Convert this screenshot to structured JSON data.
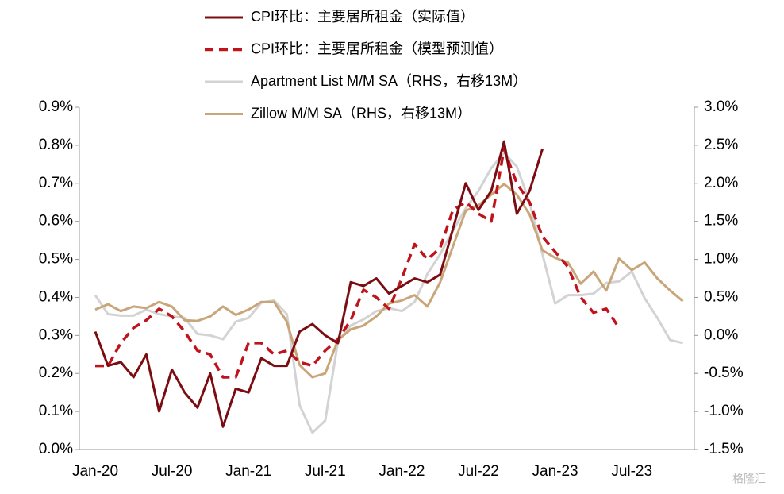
{
  "chart_data": {
    "type": "line",
    "legend": "top",
    "categories": [
      "Jan-20",
      null,
      null,
      null,
      null,
      null,
      "Jul-20",
      null,
      null,
      null,
      null,
      null,
      "Jan-21",
      null,
      null,
      null,
      null,
      null,
      "Jul-21",
      null,
      null,
      null,
      null,
      null,
      "Jan-22",
      null,
      null,
      null,
      null,
      null,
      "Jul-22",
      null,
      null,
      null,
      null,
      null,
      "Jan-23",
      null,
      null,
      null,
      null,
      null,
      "Jul-23",
      null,
      null,
      null,
      null
    ],
    "ylim": [
      0,
      0.9
    ],
    "yticks": [
      {
        "value": 0,
        "label": "0.0%"
      },
      {
        "value": 0.1,
        "label": "0.1%"
      },
      {
        "value": 0.2,
        "label": "0.2%"
      },
      {
        "value": 0.3,
        "label": "0.3%"
      },
      {
        "value": 0.4,
        "label": "0.4%"
      },
      {
        "value": 0.5,
        "label": "0.5%"
      },
      {
        "value": 0.6,
        "label": "0.6%"
      },
      {
        "value": 0.7,
        "label": "0.7%"
      },
      {
        "value": 0.8,
        "label": "0.8%"
      },
      {
        "value": 0.9,
        "label": "0.9%"
      }
    ],
    "y2lim": [
      -1.5,
      3.0
    ],
    "y2ticks": [
      {
        "value": -1.5,
        "label": "-1.5%"
      },
      {
        "value": -1.0,
        "label": "-1.0%"
      },
      {
        "value": -0.5,
        "label": "-0.5%"
      },
      {
        "value": 0,
        "label": "0.0%"
      },
      {
        "value": 0.5,
        "label": "0.5%"
      },
      {
        "value": 1.0,
        "label": "1.0%"
      },
      {
        "value": 1.5,
        "label": "1.5%"
      },
      {
        "value": 2.0,
        "label": "2.0%"
      },
      {
        "value": 2.5,
        "label": "2.5%"
      },
      {
        "value": 3.0,
        "label": "3.0%"
      }
    ],
    "series": [
      {
        "name": "CPI环比：主要居所租金（实际值）",
        "color": "#7b0d12",
        "dash": false,
        "values": [
          0.31,
          0.22,
          0.23,
          0.19,
          0.25,
          0.1,
          0.21,
          0.15,
          0.11,
          0.2,
          0.06,
          0.16,
          0.15,
          0.24,
          0.22,
          0.22,
          0.31,
          0.33,
          0.3,
          0.28,
          0.44,
          0.43,
          0.45,
          0.41,
          0.43,
          0.45,
          0.44,
          0.46,
          0.58,
          0.7,
          0.63,
          0.68,
          0.81,
          0.62,
          0.68,
          0.79,
          null,
          null,
          null,
          null,
          null,
          null,
          null,
          null,
          null,
          null,
          null
        ]
      },
      {
        "name": "CPI环比：主要居所租金（模型预测值）",
        "color": "#c0141c",
        "dash": true,
        "values": [
          0.22,
          0.22,
          0.28,
          0.32,
          0.34,
          0.37,
          0.35,
          0.31,
          0.26,
          0.25,
          0.19,
          0.19,
          0.28,
          0.28,
          0.25,
          0.26,
          0.23,
          0.22,
          0.26,
          0.29,
          0.34,
          0.42,
          0.4,
          0.37,
          0.45,
          0.54,
          0.5,
          0.53,
          0.63,
          0.65,
          0.62,
          0.6,
          0.79,
          0.7,
          0.65,
          0.56,
          0.52,
          0.48,
          0.4,
          0.36,
          0.37,
          0.32,
          null,
          null,
          null,
          null,
          null
        ]
      },
      {
        "name": "Apartment List  M/M SA（RHS，右移13M）",
        "color": "#d3d3d3",
        "dash": false,
        "axis": "y2",
        "values": [
          0.53,
          0.28,
          0.26,
          0.26,
          0.34,
          0.28,
          0.25,
          0.23,
          0.02,
          0.0,
          -0.05,
          0.18,
          0.23,
          0.43,
          0.46,
          0.28,
          -0.92,
          -1.28,
          -1.12,
          -0.08,
          0.13,
          0.21,
          0.32,
          0.36,
          0.32,
          0.44,
          0.81,
          1.07,
          1.38,
          1.67,
          1.9,
          2.2,
          2.4,
          2.22,
          1.75,
          1.07,
          0.42,
          0.53,
          0.53,
          0.55,
          0.69,
          0.71,
          0.84,
          0.49,
          0.23,
          -0.06,
          -0.1
        ]
      },
      {
        "name": "Zillow M/M SA（RHS，右移13M）",
        "color": "#c9a67a",
        "dash": false,
        "axis": "y2",
        "values": [
          0.34,
          0.41,
          0.32,
          0.38,
          0.36,
          0.44,
          0.38,
          0.2,
          0.19,
          0.25,
          0.38,
          0.27,
          0.34,
          0.44,
          0.44,
          0.18,
          -0.39,
          -0.55,
          -0.5,
          -0.06,
          0.08,
          0.13,
          0.25,
          0.42,
          0.46,
          0.53,
          0.38,
          0.7,
          1.17,
          1.64,
          1.71,
          1.85,
          1.99,
          1.85,
          1.59,
          1.12,
          1.02,
          0.96,
          0.68,
          0.84,
          0.59,
          1.01,
          0.86,
          0.96,
          0.75,
          0.59,
          0.45
        ]
      }
    ],
    "watermark": "格隆汇"
  }
}
